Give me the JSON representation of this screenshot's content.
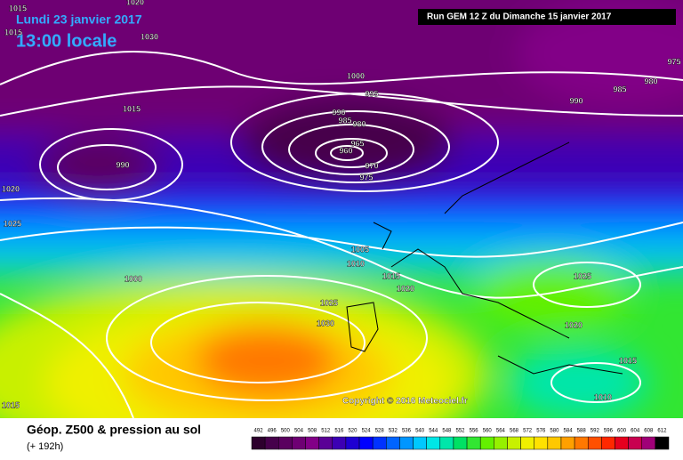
{
  "header": {
    "date": "Lundi 23 janvier 2017",
    "time": "13:00 locale",
    "run": "Run GEM 12 Z du Dimanche 15 janvier 2017"
  },
  "isobar_labels": [
    "1015",
    "1015",
    "1020",
    "1030",
    "1000",
    "995",
    "1015",
    "990",
    "985",
    "980",
    "965",
    "960",
    "970",
    "975",
    "990",
    "1020",
    "1025",
    "1005",
    "1010",
    "1015",
    "1020",
    "1000",
    "1025",
    "1030",
    "1025",
    "1020",
    "1015",
    "1010",
    "1015",
    "975",
    "980",
    "985",
    "990"
  ],
  "copyright": "Copyright © 2016 Meteociel.fr",
  "footer": {
    "title": "Géop. Z500 & pression au sol",
    "lead": "(+ 192h)"
  },
  "legend": {
    "values": [
      492,
      496,
      500,
      504,
      508,
      512,
      516,
      520,
      524,
      528,
      532,
      536,
      540,
      544,
      548,
      552,
      556,
      560,
      564,
      568,
      572,
      576,
      580,
      584,
      588,
      592,
      596,
      600,
      604,
      608,
      612
    ],
    "colors": [
      "#2d002d",
      "#46004b",
      "#5a005f",
      "#6e0073",
      "#820087",
      "#5a0096",
      "#3c00b4",
      "#1e00d2",
      "#0000ff",
      "#0032ff",
      "#0064ff",
      "#0096ff",
      "#00c8ff",
      "#00e6e6",
      "#00e6aa",
      "#00e164",
      "#32e632",
      "#64f000",
      "#96f000",
      "#c8f000",
      "#f0f000",
      "#ffe100",
      "#ffc800",
      "#ffa000",
      "#ff7800",
      "#ff5000",
      "#ff2800",
      "#e6001e",
      "#c80050",
      "#a00078",
      "#000000"
    ]
  }
}
